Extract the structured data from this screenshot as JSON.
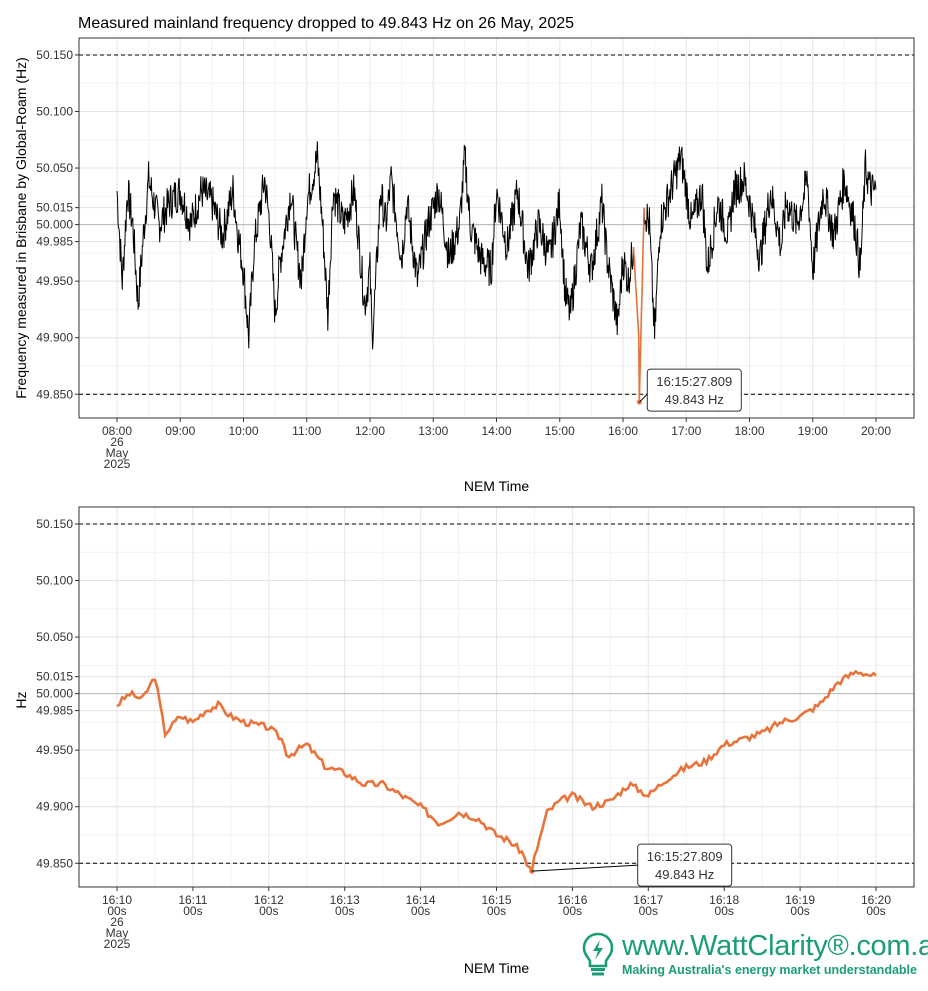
{
  "title": "Measured mainland frequency dropped to 49.843 Hz on 26 May, 2025",
  "logo": {
    "url_text": "www.WattClarity®.com.au",
    "tagline": "Making Australia's energy market understandable"
  },
  "colors": {
    "series_full": "#000000",
    "highlight": "#e8743b",
    "brand": "#1b9e77"
  },
  "chart_data": [
    {
      "type": "line",
      "xlabel": "NEM Time",
      "ylabel": "Frequency measured in Brisbane by Global-Roam (Hz)",
      "ylim": [
        49.829,
        50.165
      ],
      "yticks": [
        "49.850",
        "49.900",
        "49.950",
        "49.985",
        "50.000",
        "50.015",
        "50.050",
        "50.100",
        "50.150"
      ],
      "reference_lines": [
        49.85,
        50.15
      ],
      "xlim": [
        "08:00",
        "20:00"
      ],
      "xticks": [
        {
          "lines": [
            "08:00",
            "26",
            "May",
            "2025"
          ]
        },
        {
          "lines": [
            "09:00"
          ]
        },
        {
          "lines": [
            "10:00"
          ]
        },
        {
          "lines": [
            "11:00"
          ]
        },
        {
          "lines": [
            "12:00"
          ]
        },
        {
          "lines": [
            "13:00"
          ]
        },
        {
          "lines": [
            "14:00"
          ]
        },
        {
          "lines": [
            "15:00"
          ]
        },
        {
          "lines": [
            "16:00"
          ]
        },
        {
          "lines": [
            "17:00"
          ]
        },
        {
          "lines": [
            "18:00"
          ]
        },
        {
          "lines": [
            "19:00"
          ]
        },
        {
          "lines": [
            "20:00"
          ]
        }
      ],
      "series": [
        {
          "points": [
            [
              "08:00",
              50.03
            ],
            [
              "08:05",
              49.95
            ],
            [
              "08:10",
              50.03
            ],
            [
              "08:15",
              50.0
            ],
            [
              "08:20",
              49.93
            ],
            [
              "08:25",
              49.99
            ],
            [
              "08:30",
              50.04
            ],
            [
              "08:40",
              50.0
            ],
            [
              "08:50",
              50.02
            ],
            [
              "09:00",
              50.03
            ],
            [
              "09:10",
              50.0
            ],
            [
              "09:20",
              50.03
            ],
            [
              "09:30",
              50.02
            ],
            [
              "09:40",
              49.99
            ],
            [
              "09:50",
              50.03
            ],
            [
              "09:55",
              49.99
            ],
            [
              "10:00",
              49.96
            ],
            [
              "10:05",
              49.9
            ],
            [
              "10:10",
              49.98
            ],
            [
              "10:20",
              50.04
            ],
            [
              "10:25",
              50.0
            ],
            [
              "10:30",
              49.92
            ],
            [
              "10:35",
              49.97
            ],
            [
              "10:45",
              50.03
            ],
            [
              "10:50",
              49.98
            ],
            [
              "10:55",
              49.95
            ],
            [
              "11:00",
              50.02
            ],
            [
              "11:10",
              50.06
            ],
            [
              "11:15",
              50.0
            ],
            [
              "11:20",
              49.92
            ],
            [
              "11:25",
              50.03
            ],
            [
              "11:35",
              50.0
            ],
            [
              "11:45",
              50.03
            ],
            [
              "11:50",
              49.98
            ],
            [
              "11:55",
              49.93
            ],
            [
              "12:00",
              49.96
            ],
            [
              "12:02",
              49.9
            ],
            [
              "12:05",
              49.94
            ],
            [
              "12:10",
              50.03
            ],
            [
              "12:15",
              50.0
            ],
            [
              "12:20",
              50.04
            ],
            [
              "12:30",
              49.97
            ],
            [
              "12:35",
              50.02
            ],
            [
              "12:45",
              49.95
            ],
            [
              "12:55",
              50.0
            ],
            [
              "13:05",
              50.03
            ],
            [
              "13:15",
              49.97
            ],
            [
              "13:25",
              50.0
            ],
            [
              "13:30",
              50.06
            ],
            [
              "13:35",
              50.0
            ],
            [
              "13:45",
              49.97
            ],
            [
              "13:55",
              49.96
            ],
            [
              "14:00",
              50.03
            ],
            [
              "14:10",
              49.98
            ],
            [
              "14:20",
              50.03
            ],
            [
              "14:30",
              49.96
            ],
            [
              "14:40",
              50.0
            ],
            [
              "14:50",
              49.97
            ],
            [
              "15:00",
              50.02
            ],
            [
              "15:05",
              49.94
            ],
            [
              "15:10",
              49.92
            ],
            [
              "15:20",
              50.0
            ],
            [
              "15:30",
              49.96
            ],
            [
              "15:40",
              50.02
            ],
            [
              "15:45",
              49.97
            ],
            [
              "15:50",
              49.94
            ],
            [
              "15:55",
              49.91
            ],
            [
              "16:00",
              49.97
            ],
            [
              "16:05",
              49.95
            ],
            [
              "16:10",
              49.98
            ],
            [
              "16:15",
              49.9
            ],
            [
              "16:15:27",
              49.843
            ],
            [
              "16:20",
              50.015
            ],
            [
              "16:25",
              50.0
            ],
            [
              "16:30",
              49.9
            ],
            [
              "16:35",
              50.0
            ],
            [
              "16:45",
              50.03
            ],
            [
              "16:55",
              50.06
            ],
            [
              "17:05",
              50.0
            ],
            [
              "17:15",
              50.03
            ],
            [
              "17:20",
              49.96
            ],
            [
              "17:30",
              50.02
            ],
            [
              "17:40",
              49.99
            ],
            [
              "17:45",
              50.03
            ],
            [
              "17:55",
              50.04
            ],
            [
              "18:00",
              50.02
            ],
            [
              "18:10",
              49.97
            ],
            [
              "18:20",
              50.03
            ],
            [
              "18:30",
              49.98
            ],
            [
              "18:35",
              50.02
            ],
            [
              "18:45",
              50.0
            ],
            [
              "18:55",
              50.04
            ],
            [
              "19:00",
              49.96
            ],
            [
              "19:10",
              50.03
            ],
            [
              "19:20",
              49.99
            ],
            [
              "19:30",
              50.04
            ],
            [
              "19:40",
              50.0
            ],
            [
              "19:45",
              49.96
            ],
            [
              "19:50",
              50.05
            ],
            [
              "19:55",
              50.03
            ],
            [
              "20:00",
              50.03
            ]
          ]
        }
      ],
      "annotation": {
        "x": "16:15:27.809",
        "y": 49.843,
        "lines": [
          "16:15:27.809",
          "49.843 Hz"
        ]
      }
    },
    {
      "type": "line",
      "xlabel": "NEM Time",
      "ylabel": "Hz",
      "ylim": [
        49.829,
        50.165
      ],
      "yticks": [
        "49.850",
        "49.900",
        "49.950",
        "49.985",
        "50.000",
        "50.015",
        "50.050",
        "50.100",
        "50.150"
      ],
      "reference_lines": [
        49.85,
        50.15
      ],
      "xlim": [
        "16:10:00",
        "16:20:00"
      ],
      "xticks": [
        {
          "lines": [
            "16:10",
            "00s",
            "26",
            "May",
            "2025"
          ]
        },
        {
          "lines": [
            "16:11",
            "00s"
          ]
        },
        {
          "lines": [
            "16:12",
            "00s"
          ]
        },
        {
          "lines": [
            "16:13",
            "00s"
          ]
        },
        {
          "lines": [
            "16:14",
            "00s"
          ]
        },
        {
          "lines": [
            "16:15",
            "00s"
          ]
        },
        {
          "lines": [
            "16:16",
            "00s"
          ]
        },
        {
          "lines": [
            "16:17",
            "00s"
          ]
        },
        {
          "lines": [
            "16:18",
            "00s"
          ]
        },
        {
          "lines": [
            "16:19",
            "00s"
          ]
        },
        {
          "lines": [
            "16:20",
            "00s"
          ]
        }
      ],
      "series": [
        {
          "points": [
            [
              "16:10:00",
              49.99
            ],
            [
              "16:10:10",
              50.0
            ],
            [
              "16:10:20",
              49.995
            ],
            [
              "16:10:30",
              50.015
            ],
            [
              "16:10:38",
              49.965
            ],
            [
              "16:10:50",
              49.98
            ],
            [
              "16:11:00",
              49.975
            ],
            [
              "16:11:10",
              49.985
            ],
            [
              "16:11:20",
              49.99
            ],
            [
              "16:11:30",
              49.98
            ],
            [
              "16:11:40",
              49.975
            ],
            [
              "16:12:00",
              49.97
            ],
            [
              "16:12:10",
              49.96
            ],
            [
              "16:12:15",
              49.945
            ],
            [
              "16:12:30",
              49.955
            ],
            [
              "16:12:45",
              49.935
            ],
            [
              "16:13:00",
              49.93
            ],
            [
              "16:13:15",
              49.92
            ],
            [
              "16:13:30",
              49.92
            ],
            [
              "16:13:45",
              49.91
            ],
            [
              "16:14:00",
              49.9
            ],
            [
              "16:14:15",
              49.885
            ],
            [
              "16:14:30",
              49.895
            ],
            [
              "16:14:45",
              49.89
            ],
            [
              "16:15:00",
              49.875
            ],
            [
              "16:15:10",
              49.87
            ],
            [
              "16:15:20",
              49.86
            ],
            [
              "16:15:27",
              49.843
            ],
            [
              "16:15:40",
              49.895
            ],
            [
              "16:15:50",
              49.905
            ],
            [
              "16:16:00",
              49.91
            ],
            [
              "16:16:15",
              49.9
            ],
            [
              "16:16:30",
              49.905
            ],
            [
              "16:16:45",
              49.92
            ],
            [
              "16:17:00",
              49.91
            ],
            [
              "16:17:15",
              49.925
            ],
            [
              "16:17:30",
              49.935
            ],
            [
              "16:17:45",
              49.94
            ],
            [
              "16:18:00",
              49.955
            ],
            [
              "16:18:15",
              49.96
            ],
            [
              "16:18:30",
              49.965
            ],
            [
              "16:18:45",
              49.975
            ],
            [
              "16:19:00",
              49.98
            ],
            [
              "16:19:15",
              49.99
            ],
            [
              "16:19:30",
              50.01
            ],
            [
              "16:19:45",
              50.02
            ],
            [
              "16:20:00",
              50.015
            ]
          ]
        }
      ],
      "annotation": {
        "x": "16:15:27.809",
        "y": 49.843,
        "lines": [
          "16:15:27.809",
          "49.843 Hz"
        ]
      }
    }
  ]
}
